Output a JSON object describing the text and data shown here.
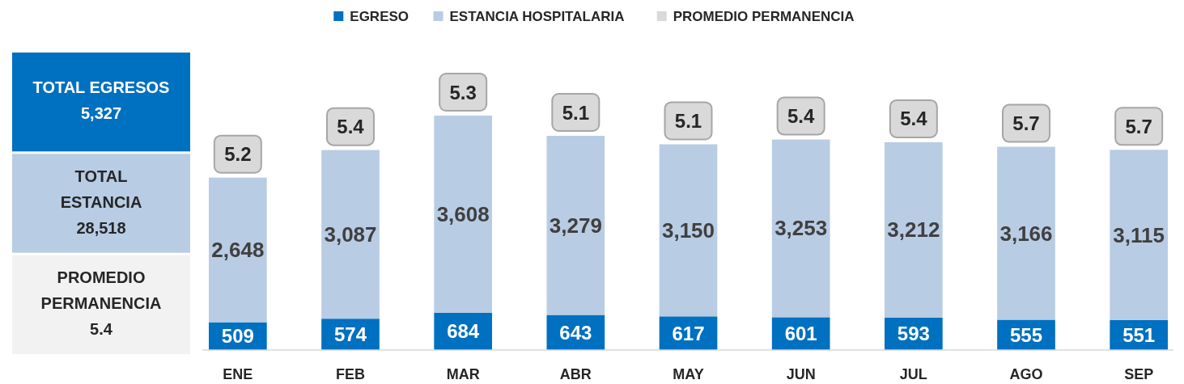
{
  "chart_data": [
    {
      "type": "other",
      "annotations": [
        "TOTAL EGRESOS\n5,327",
        "TOTAL\nESTANCIA\n28,518",
        "PROMEDIO\nPERMANENCIA\n5.4"
      ],
      "colors": [
        "#0070c0",
        "#b8cce4",
        "#f2f2f2"
      ]
    },
    {
      "type": "bar",
      "stacked": true,
      "categories": [
        "ENE",
        "FEB",
        "MAR",
        "ABR",
        "MAY",
        "JUN",
        "JUL",
        "AGO",
        "SEP"
      ],
      "series": [
        {
          "name": "EGRESO",
          "color": "#0070c0",
          "values": [
            509,
            574,
            684,
            643,
            617,
            601,
            593,
            555,
            551
          ],
          "value_labels": [
            "509",
            "574",
            "684",
            "643",
            "617",
            "601",
            "593",
            "555",
            "551"
          ]
        },
        {
          "name": "ESTANCIA HOSPITALARIA",
          "color": "#b8cce4",
          "values": [
            2648,
            3087,
            3608,
            3279,
            3150,
            3253,
            3212,
            3166,
            3115
          ],
          "value_labels": [
            "2,648",
            "3,087",
            "3,608",
            "3,279",
            "3,150",
            "3,253",
            "3,212",
            "3,166",
            "3,115"
          ]
        },
        {
          "name": "PROMEDIO PERMANENCIA",
          "color": "#d9d9d9",
          "values": [
            null,
            null,
            null,
            null,
            null,
            null,
            null,
            null,
            null
          ]
        }
      ],
      "annotations": [
        {
          "text": "5.2",
          "x": "ENE",
          "y": 3157
        },
        {
          "text": "5.4",
          "x": "FEB",
          "y": 3661
        },
        {
          "text": "5.3",
          "x": "MAR",
          "y": 4292
        },
        {
          "text": "5.1",
          "x": "ABR",
          "y": 3922
        },
        {
          "text": "5.1",
          "x": "MAY",
          "y": 3767
        },
        {
          "text": "5.4",
          "x": "JUN",
          "y": 3854
        },
        {
          "text": "5.4",
          "x": "JUL",
          "y": 3805
        },
        {
          "text": "5.7",
          "x": "AGO",
          "y": 3721
        },
        {
          "text": "5.7",
          "x": "SEP",
          "y": 3666
        }
      ],
      "legend": "top"
    }
  ]
}
